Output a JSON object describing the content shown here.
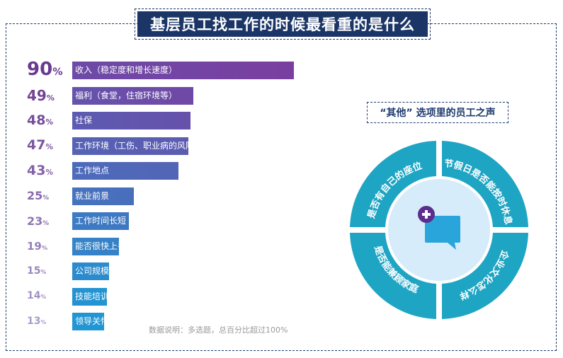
{
  "title": "基层员工找工作的时候最看重的是什么",
  "footnote": "数据说明：多选题，总百分比超过100%",
  "voice_title": "“其他” 选项里的员工之声",
  "voice_segments": [
    "是否有自己的座位",
    "节假日是否能按时休息",
    "企业文化怎么样",
    "是否能兼顾家庭"
  ],
  "colors": {
    "title_bg": "#1b3566",
    "bar_top": "#7a3ea0",
    "bar_bottom": "#2196d3",
    "ring": "#1ea5c4",
    "pct_dark": "#6a3a8e",
    "pct_light": "#9a86c2"
  },
  "chart_data": {
    "type": "bar",
    "orientation": "horizontal",
    "categories": [
      "收入（稳定度和增长速度）",
      "福利（食堂，住宿环境等）",
      "社保",
      "工作环境（工伤、职业病的风险）",
      "工作地点",
      "就业前景",
      "工作时间长短",
      "能否很快上手",
      "公司规模",
      "技能培训",
      "领导关怀"
    ],
    "values": [
      90,
      49,
      48,
      47,
      43,
      25,
      23,
      19,
      15,
      14,
      13
    ],
    "unit": "%",
    "xlim": [
      0,
      100
    ]
  }
}
